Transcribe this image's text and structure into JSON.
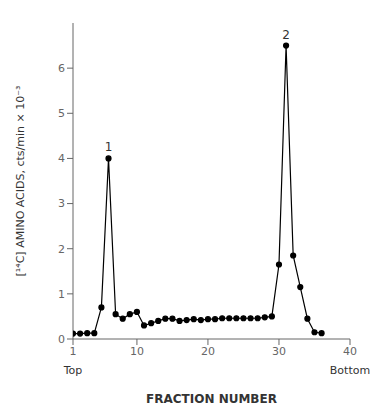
{
  "chart_data": {
    "type": "line",
    "x": [
      1,
      2,
      3,
      4,
      5,
      6,
      7,
      8,
      9,
      10,
      11,
      12,
      13,
      14,
      15,
      16,
      17,
      18,
      19,
      20,
      21,
      22,
      23,
      24,
      25,
      26,
      27,
      28,
      29,
      30,
      31,
      32,
      33,
      34,
      35,
      36
    ],
    "values": [
      0.12,
      0.12,
      0.13,
      0.13,
      0.7,
      4.0,
      0.55,
      0.45,
      0.55,
      0.6,
      0.3,
      0.35,
      0.4,
      0.45,
      0.45,
      0.4,
      0.42,
      0.44,
      0.42,
      0.44,
      0.44,
      0.46,
      0.46,
      0.46,
      0.46,
      0.46,
      0.46,
      0.48,
      0.5,
      1.65,
      6.5,
      1.85,
      1.15,
      0.45,
      0.15,
      0.13
    ],
    "xlabel": "FRACTION NUMBER",
    "ylabel": "[¹⁴C] AMINO ACIDS, cts/min × 10⁻³",
    "xlim": [
      1,
      40
    ],
    "ylim": [
      0,
      7.0
    ],
    "xticks": [
      1,
      10,
      20,
      30,
      40
    ],
    "yticks": [
      0,
      1,
      2,
      3,
      4,
      5,
      6
    ],
    "color": "#000000",
    "marker": "circle",
    "grid": false,
    "annotations": [
      {
        "x": 6,
        "y": 4.0,
        "text": "1"
      },
      {
        "x": 31,
        "y": 6.5,
        "text": "2"
      },
      {
        "x": 1,
        "text": "Top"
      },
      {
        "x": 40,
        "text": "Bottom"
      }
    ]
  }
}
